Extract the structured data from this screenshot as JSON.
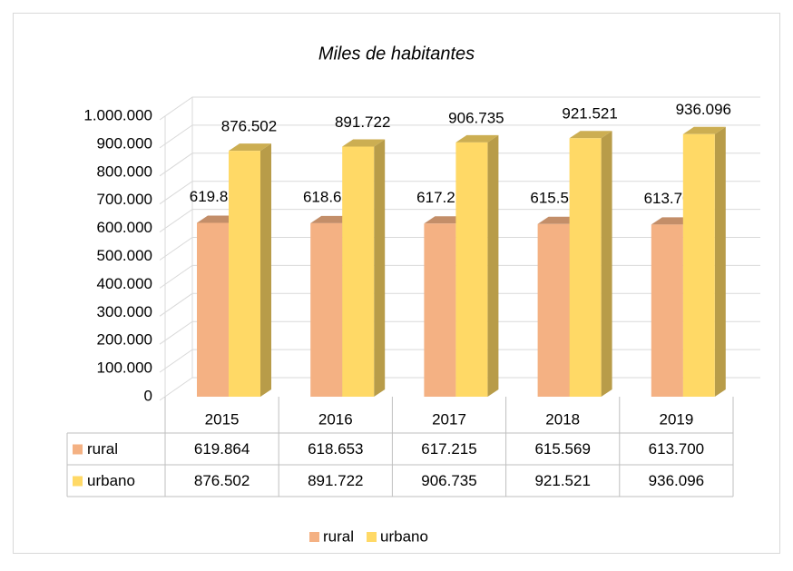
{
  "chart_data": {
    "type": "bar",
    "title": "Miles de habitantes",
    "categories": [
      "2015",
      "2016",
      "2017",
      "2018",
      "2019"
    ],
    "series": [
      {
        "name": "rural",
        "color": "#F4B183",
        "values": [
          619864,
          618653,
          617215,
          615569,
          613700
        ],
        "value_labels": [
          "619.864",
          "618.653",
          "617.215",
          "615.569",
          "613.700"
        ]
      },
      {
        "name": "urbano",
        "color": "#FFD966",
        "values": [
          876502,
          891722,
          906735,
          921521,
          936096
        ],
        "value_labels": [
          "876.502",
          "891.722",
          "906.735",
          "921.521",
          "936.096"
        ]
      }
    ],
    "ylim": [
      0,
      1000000
    ],
    "yticks": [
      0,
      {
        "value": 100000,
        "label": "100.000"
      },
      {
        "value": 200000,
        "label": "200.000"
      },
      {
        "value": 300000,
        "label": "300.000"
      },
      {
        "value": 400000,
        "label": "400.000"
      },
      {
        "value": 500000,
        "label": "500.000"
      },
      {
        "value": 600000,
        "label": "600.000"
      },
      {
        "value": 700000,
        "label": "700.000"
      },
      {
        "value": 800000,
        "label": "800.000"
      },
      {
        "value": 900000,
        "label": "900.000"
      },
      {
        "value": 1000000,
        "label": "1.000.000"
      }
    ],
    "grid": true,
    "legend": "bottom",
    "data_table": true
  }
}
